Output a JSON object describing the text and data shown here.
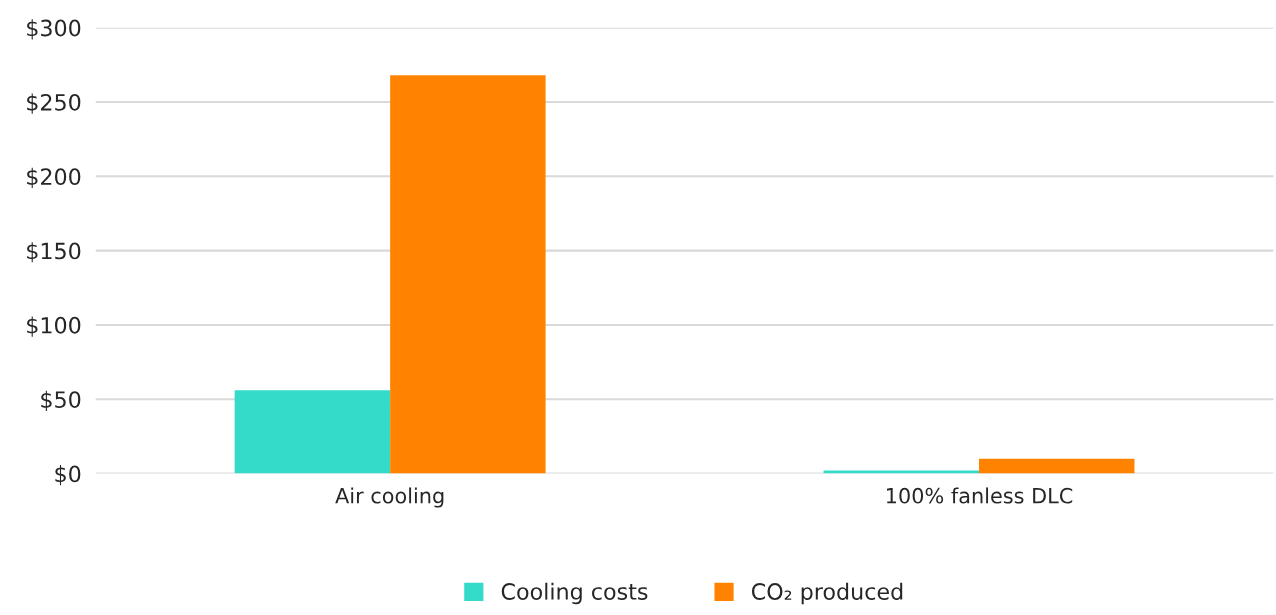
{
  "chart_data": {
    "type": "bar",
    "categories": [
      "Air cooling",
      "100% fanless DLC"
    ],
    "series": [
      {
        "name": "Cooling costs",
        "color": "#33dbc8",
        "values": [
          56,
          2
        ]
      },
      {
        "name": "CO₂ produced",
        "color": "#ff8300",
        "values": [
          268,
          10
        ]
      }
    ],
    "ylim": [
      0,
      300
    ],
    "yticks": [
      {
        "value": 0,
        "label": "$0"
      },
      {
        "value": 50,
        "label": "$50"
      },
      {
        "value": 100,
        "label": "$100"
      },
      {
        "value": 150,
        "label": "$150"
      },
      {
        "value": 200,
        "label": "$200"
      },
      {
        "value": 250,
        "label": "$250"
      },
      {
        "value": 300,
        "label": "$300"
      }
    ],
    "grid": "y",
    "legend": "bottom"
  }
}
